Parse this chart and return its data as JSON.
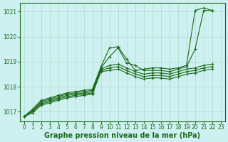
{
  "background_color": "#cff0f0",
  "grid_color": "#aaddcc",
  "line_color": "#1a6b1a",
  "xlabel": "Graphe pression niveau de la mer (hPa)",
  "xlabel_fontsize": 7,
  "tick_fontsize": 5.5,
  "xlim": [
    -0.5,
    23.5
  ],
  "ylim": [
    1016.6,
    1021.35
  ],
  "yticks": [
    1017,
    1018,
    1019,
    1020,
    1021
  ],
  "xticks": [
    0,
    1,
    2,
    3,
    4,
    5,
    6,
    7,
    8,
    9,
    10,
    11,
    12,
    13,
    14,
    15,
    16,
    17,
    18,
    19,
    20,
    21,
    22,
    23
  ],
  "series": [
    {
      "x": [
        0,
        1,
        2,
        3,
        4,
        5,
        6,
        7,
        8,
        9,
        10,
        11,
        12,
        13,
        14,
        15,
        16,
        17,
        18,
        19,
        20,
        21,
        22
      ],
      "y": [
        1016.8,
        1017.1,
        1017.45,
        1017.55,
        1017.65,
        1017.75,
        1017.8,
        1017.85,
        1017.9,
        1018.8,
        1019.55,
        1019.6,
        1019.1,
        1018.65,
        1018.7,
        1018.75,
        1018.75,
        1018.7,
        1018.75,
        1018.85,
        1021.05,
        1021.15,
        1021.05
      ]
    },
    {
      "x": [
        0,
        1,
        2,
        3,
        4,
        5,
        6,
        7,
        8,
        9,
        10,
        11,
        12,
        13,
        14,
        15,
        16,
        17,
        18,
        19,
        20,
        21,
        22
      ],
      "y": [
        1016.8,
        1017.05,
        1017.4,
        1017.5,
        1017.6,
        1017.7,
        1017.75,
        1017.8,
        1017.85,
        1018.75,
        1019.2,
        1019.55,
        1018.95,
        1018.85,
        1018.65,
        1018.65,
        1018.65,
        1018.6,
        1018.7,
        1018.8,
        1019.5,
        1021.05,
        1021.05
      ]
    },
    {
      "x": [
        0,
        1,
        2,
        3,
        4,
        5,
        6,
        7,
        8,
        9,
        10,
        11,
        12,
        13,
        14,
        15,
        16,
        17,
        18,
        19,
        20,
        21,
        22
      ],
      "y": [
        1016.8,
        1017.0,
        1017.35,
        1017.45,
        1017.55,
        1017.65,
        1017.7,
        1017.75,
        1017.8,
        1018.7,
        1018.85,
        1018.9,
        1018.75,
        1018.6,
        1018.5,
        1018.55,
        1018.55,
        1018.5,
        1018.6,
        1018.7,
        1018.75,
        1018.85,
        1018.9
      ]
    },
    {
      "x": [
        0,
        1,
        2,
        3,
        4,
        5,
        6,
        7,
        8,
        9,
        10,
        11,
        12,
        13,
        14,
        15,
        16,
        17,
        18,
        19,
        20,
        21,
        22
      ],
      "y": [
        1016.8,
        1017.0,
        1017.3,
        1017.4,
        1017.5,
        1017.6,
        1017.65,
        1017.7,
        1017.75,
        1018.65,
        1018.75,
        1018.8,
        1018.65,
        1018.5,
        1018.4,
        1018.45,
        1018.45,
        1018.4,
        1018.5,
        1018.6,
        1018.65,
        1018.75,
        1018.8
      ]
    },
    {
      "x": [
        0,
        1,
        2,
        3,
        4,
        5,
        6,
        7,
        8,
        9,
        10,
        11,
        12,
        13,
        14,
        15,
        16,
        17,
        18,
        19,
        20,
        21,
        22
      ],
      "y": [
        1016.8,
        1016.95,
        1017.25,
        1017.35,
        1017.45,
        1017.55,
        1017.6,
        1017.65,
        1017.7,
        1018.6,
        1018.65,
        1018.7,
        1018.55,
        1018.4,
        1018.3,
        1018.35,
        1018.35,
        1018.3,
        1018.4,
        1018.5,
        1018.55,
        1018.65,
        1018.7
      ]
    }
  ]
}
